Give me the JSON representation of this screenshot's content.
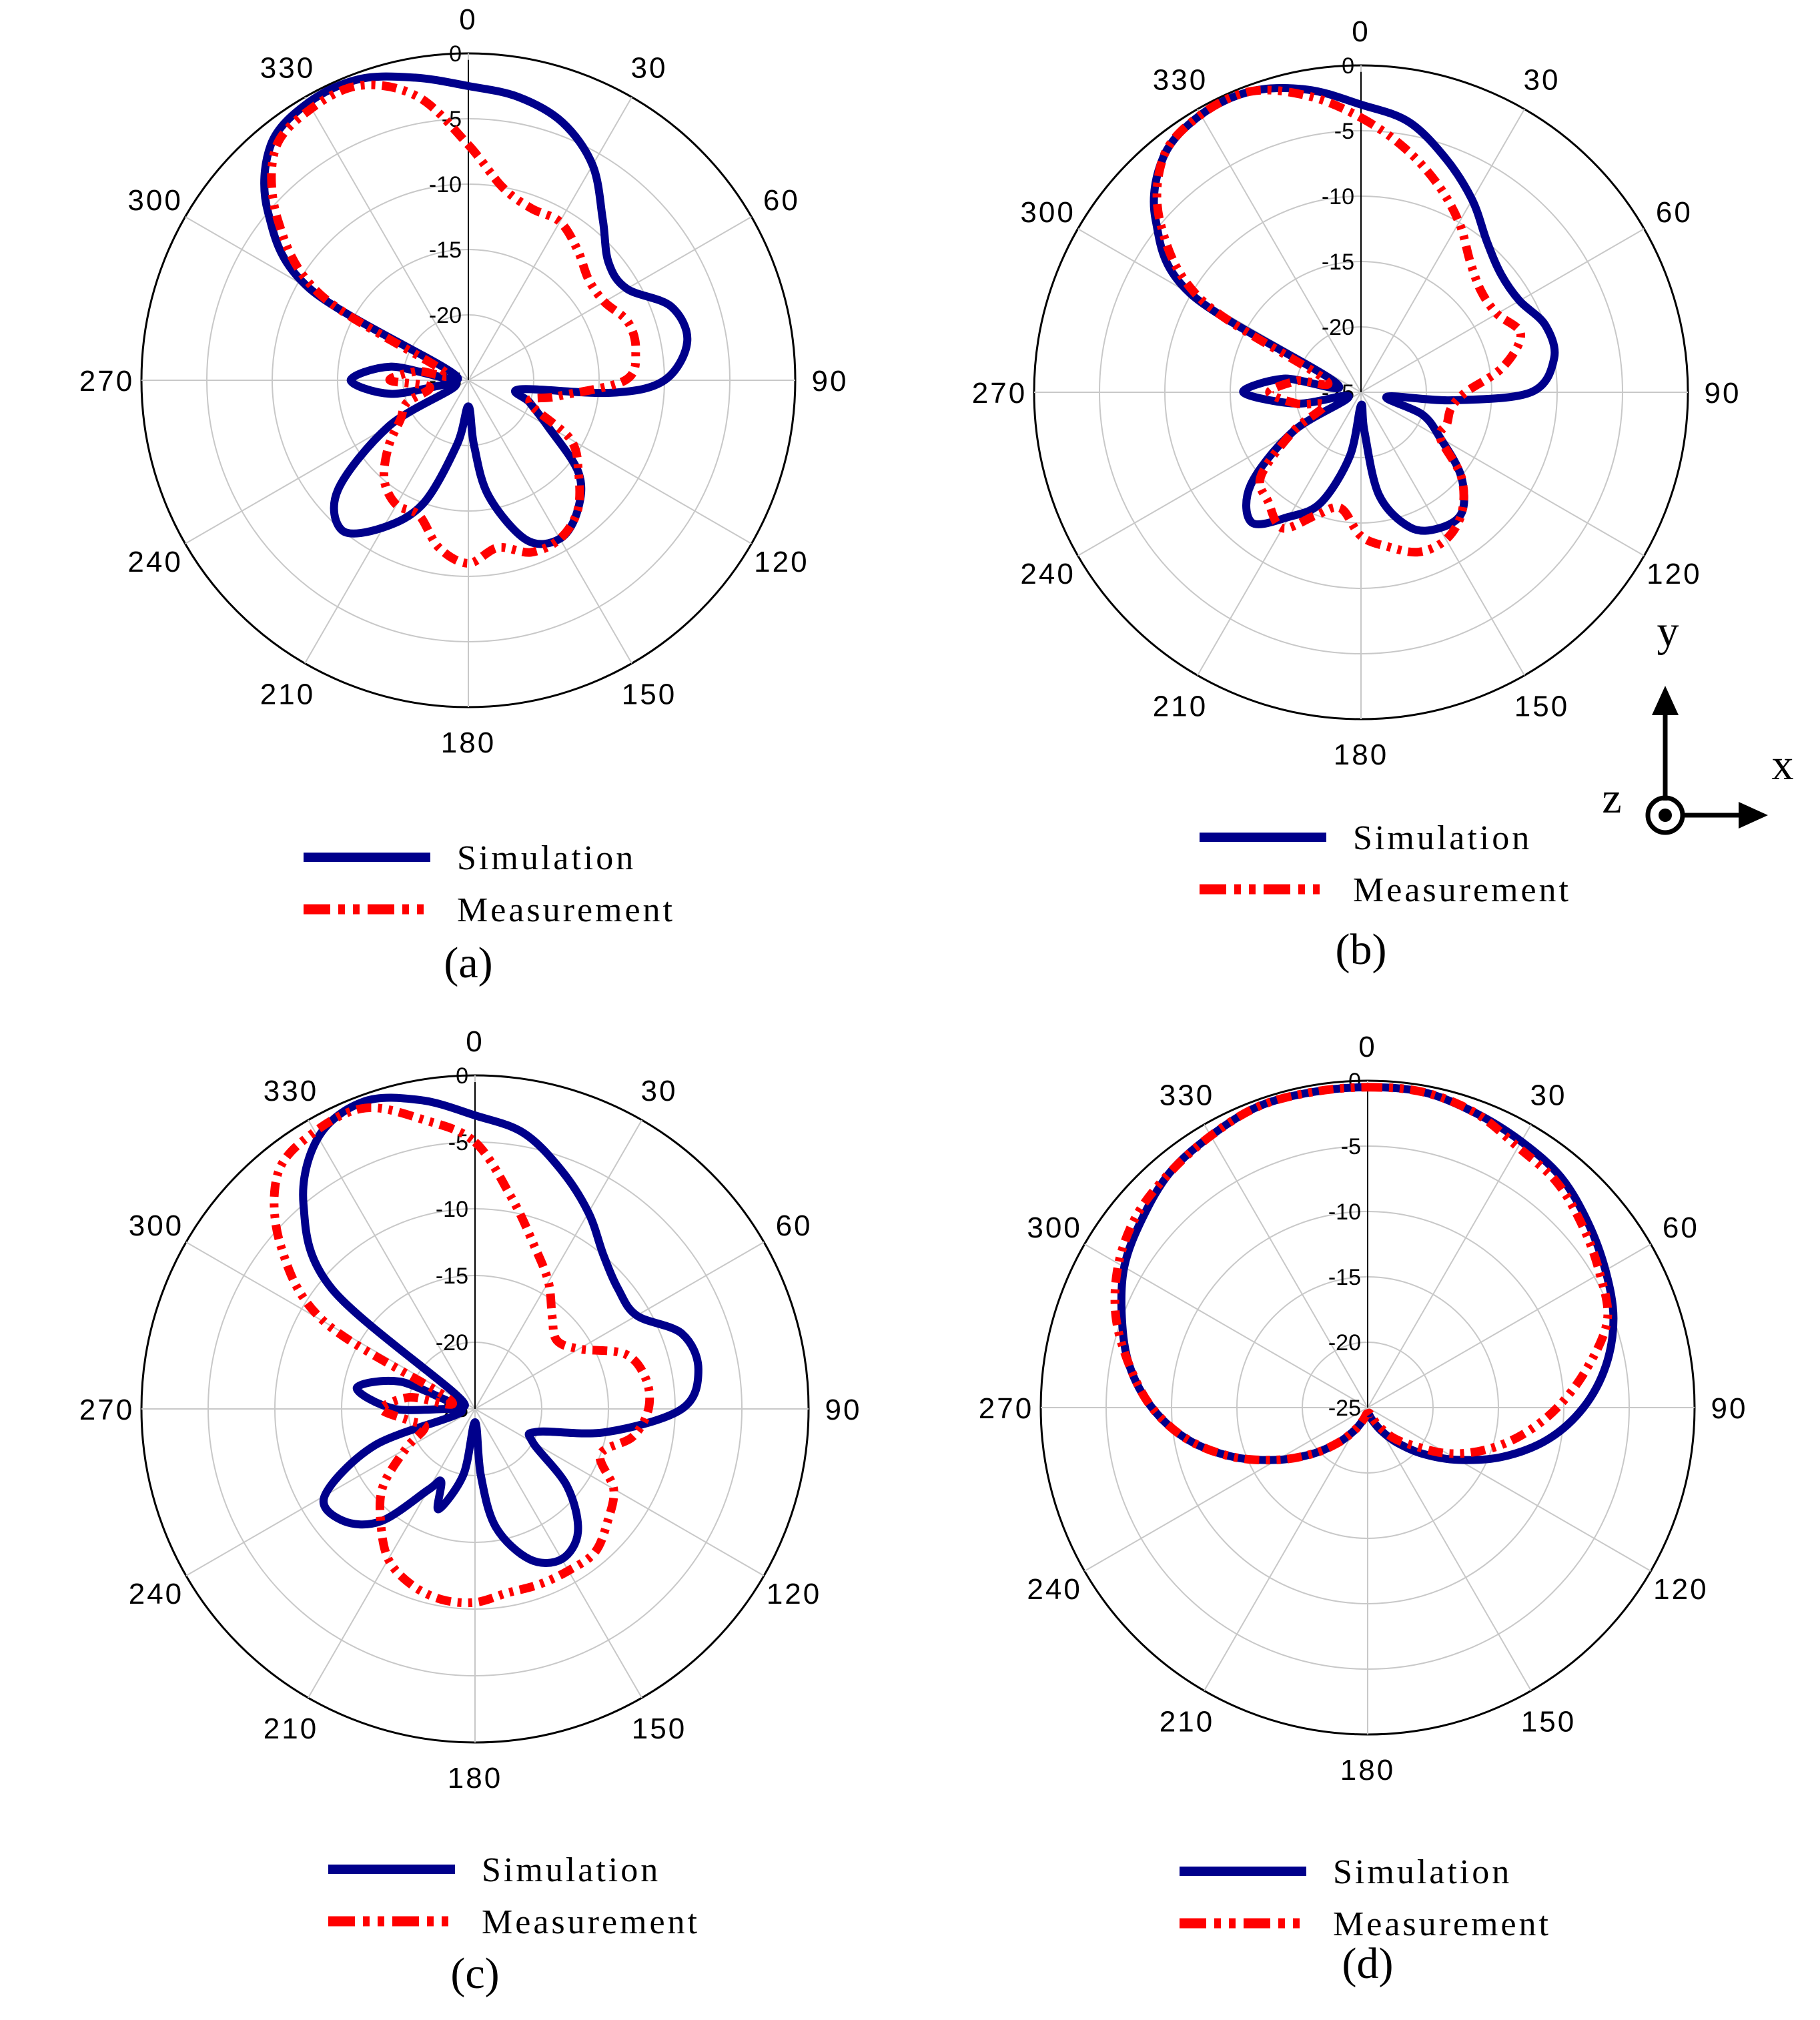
{
  "colors": {
    "simulation": "#00008b",
    "measurement": "#ff0000",
    "grid": "#c8c8c8",
    "frame": "#000000"
  },
  "coordinate_axes": {
    "y_label": "y",
    "x_label": "x",
    "z_label": "z"
  },
  "chart_data": [
    {
      "type": "line",
      "subtype": "polar",
      "panel_label": "(a)",
      "angle_ticks": [
        "0",
        "30",
        "60",
        "90",
        "120",
        "150",
        "180",
        "210",
        "240",
        "270",
        "300",
        "330"
      ],
      "radial_ticks": [
        "0",
        "-5",
        "-10",
        "-15",
        "-20",
        "-25"
      ],
      "rlim": [
        -25,
        0
      ],
      "grid": true,
      "legend": [
        "Simulation",
        "Measurement"
      ],
      "legend_position": "bottom",
      "series": [
        {
          "name": "Simulation",
          "angles": [
            0,
            10,
            20,
            30,
            40,
            50,
            60,
            70,
            80,
            90,
            95,
            100,
            110,
            120,
            130,
            140,
            150,
            160,
            170,
            175,
            180,
            190,
            200,
            210,
            220,
            230,
            240,
            250,
            260,
            270,
            280,
            290,
            300,
            310,
            320,
            330,
            340,
            350
          ],
          "values": [
            -2.5,
            -3,
            -4,
            -6,
            -9,
            -11,
            -11,
            -8.5,
            -8,
            -10,
            -14,
            -21,
            -20,
            -18,
            -14,
            -12,
            -11,
            -12,
            -16,
            -20,
            -23,
            -20,
            -15,
            -12,
            -10,
            -12,
            -18,
            -24,
            -19,
            -16,
            -19,
            -24,
            -11,
            -5,
            -1.5,
            -0.5,
            -0.5,
            -1.5
          ]
        },
        {
          "name": "Measurement",
          "angles": [
            0,
            10,
            20,
            30,
            40,
            50,
            60,
            70,
            80,
            90,
            100,
            110,
            120,
            130,
            140,
            150,
            160,
            170,
            180,
            190,
            200,
            210,
            220,
            230,
            240,
            250,
            260,
            270,
            280,
            290,
            300,
            310,
            320,
            330,
            340,
            350
          ],
          "values": [
            -7,
            -10,
            -11,
            -11,
            -12,
            -13,
            -13,
            -12,
            -12,
            -13,
            -18,
            -20,
            -16,
            -14,
            -12,
            -11,
            -11,
            -12,
            -11,
            -12,
            -14,
            -14,
            -15,
            -17,
            -19,
            -20,
            -22,
            -19,
            -21,
            -23,
            -12,
            -6,
            -2,
            -1,
            -1,
            -3
          ]
        }
      ]
    },
    {
      "type": "line",
      "subtype": "polar",
      "panel_label": "(b)",
      "angle_ticks": [
        "0",
        "30",
        "60",
        "90",
        "120",
        "150",
        "180",
        "210",
        "240",
        "270",
        "300",
        "330"
      ],
      "radial_ticks": [
        "0",
        "-5",
        "-10",
        "-15",
        "-20",
        "-25"
      ],
      "rlim": [
        -25,
        0
      ],
      "grid": true,
      "legend": [
        "Simulation",
        "Measurement"
      ],
      "legend_position": "bottom",
      "series": [
        {
          "name": "Simulation",
          "angles": [
            0,
            10,
            20,
            30,
            40,
            50,
            60,
            70,
            80,
            90,
            95,
            100,
            110,
            120,
            130,
            140,
            150,
            160,
            170,
            175,
            180,
            190,
            200,
            210,
            220,
            230,
            240,
            250,
            260,
            270,
            280,
            290,
            300,
            310,
            320,
            330,
            340,
            350
          ],
          "values": [
            -3,
            -4,
            -6,
            -8,
            -10,
            -11,
            -11,
            -10,
            -10,
            -12,
            -18,
            -23,
            -20,
            -18,
            -15,
            -13,
            -13,
            -14,
            -17,
            -22,
            -24,
            -20,
            -16,
            -14,
            -12,
            -14,
            -19,
            -24,
            -20,
            -16,
            -19,
            -23,
            -10,
            -4.5,
            -1.5,
            -0.5,
            -0.5,
            -1.5
          ]
        },
        {
          "name": "Measurement",
          "angles": [
            0,
            10,
            20,
            30,
            40,
            50,
            60,
            70,
            80,
            90,
            100,
            110,
            120,
            130,
            140,
            150,
            160,
            170,
            180,
            190,
            200,
            210,
            220,
            230,
            240,
            250,
            260,
            270,
            280,
            290,
            300,
            310,
            320,
            330,
            340,
            350
          ],
          "values": [
            -4,
            -6,
            -8,
            -10,
            -12,
            -13,
            -13,
            -12,
            -14,
            -17,
            -18,
            -18,
            -18,
            -15,
            -13,
            -12,
            -12,
            -13,
            -14,
            -16,
            -15,
            -13,
            -14,
            -15,
            -19,
            -22,
            -20,
            -18,
            -20,
            -22,
            -11,
            -5,
            -1.5,
            -0.5,
            -0.5,
            -2
          ]
        }
      ]
    },
    {
      "type": "line",
      "subtype": "polar",
      "panel_label": "(c)",
      "angle_ticks": [
        "0",
        "30",
        "60",
        "90",
        "120",
        "150",
        "180",
        "210",
        "240",
        "270",
        "300",
        "330"
      ],
      "radial_ticks": [
        "0",
        "-5",
        "-10",
        "-15",
        "-20",
        "-25"
      ],
      "rlim": [
        -25,
        0
      ],
      "grid": true,
      "legend": [
        "Simulation",
        "Measurement"
      ],
      "legend_position": "bottom",
      "series": [
        {
          "name": "Simulation",
          "angles": [
            0,
            10,
            20,
            30,
            40,
            50,
            60,
            70,
            80,
            90,
            100,
            110,
            120,
            130,
            140,
            150,
            160,
            170,
            175,
            180,
            190,
            200,
            205,
            210,
            220,
            230,
            240,
            250,
            260,
            270,
            280,
            290,
            300,
            310,
            320,
            330,
            340,
            350
          ],
          "values": [
            -3,
            -4,
            -6,
            -8,
            -10,
            -11,
            -11,
            -8.5,
            -8,
            -9.5,
            -15,
            -20,
            -20,
            -16,
            -13,
            -12,
            -13,
            -16,
            -20,
            -24,
            -20,
            -17,
            -19,
            -18,
            -14,
            -12,
            -12,
            -17,
            -24,
            -19,
            -16,
            -19,
            -24,
            -11,
            -5,
            -1.5,
            -0.5,
            -1.5
          ]
        },
        {
          "name": "Measurement",
          "angles": [
            0,
            10,
            20,
            30,
            40,
            50,
            60,
            70,
            80,
            90,
            100,
            110,
            120,
            130,
            140,
            150,
            160,
            170,
            180,
            190,
            200,
            210,
            220,
            230,
            240,
            250,
            260,
            270,
            280,
            290,
            300,
            310,
            320,
            330,
            340,
            350
          ],
          "values": [
            -5,
            -9,
            -12,
            -14,
            -16,
            -17,
            -16,
            -13,
            -12,
            -12,
            -13,
            -15,
            -13,
            -12,
            -11,
            -11,
            -11,
            -11,
            -10.5,
            -10.5,
            -11,
            -12,
            -14,
            -16,
            -19,
            -21,
            -20,
            -18,
            -20,
            -23,
            -12,
            -6,
            -2,
            -1,
            -1,
            -3
          ]
        }
      ]
    },
    {
      "type": "line",
      "subtype": "polar",
      "panel_label": "(d)",
      "angle_ticks": [
        "0",
        "30",
        "60",
        "90",
        "120",
        "150",
        "180",
        "210",
        "240",
        "270",
        "300",
        "330"
      ],
      "radial_ticks": [
        "0",
        "-5",
        "-10",
        "-15",
        "-20",
        "-25"
      ],
      "rlim": [
        -25,
        0
      ],
      "grid": true,
      "legend": [
        "Simulation",
        "Measurement"
      ],
      "legend_position": "bottom",
      "series": [
        {
          "name": "Simulation",
          "angles": [
            0,
            10,
            20,
            30,
            40,
            50,
            60,
            70,
            80,
            90,
            100,
            110,
            120,
            130,
            140,
            150,
            160,
            170,
            180,
            190,
            200,
            210,
            220,
            230,
            240,
            250,
            260,
            270,
            280,
            290,
            300,
            310,
            320,
            330,
            340,
            350
          ],
          "values": [
            -0.5,
            -0.5,
            -1,
            -1.5,
            -2,
            -3,
            -4,
            -5,
            -6.5,
            -8.5,
            -11,
            -14,
            -17,
            -19.5,
            -21.5,
            -23,
            -24,
            -24.5,
            -24.5,
            -24.5,
            -24,
            -23,
            -21.5,
            -19.5,
            -17,
            -14,
            -11,
            -8.5,
            -6.5,
            -5,
            -3.5,
            -2.5,
            -1.5,
            -1,
            -0.5,
            -0.5
          ]
        },
        {
          "name": "Measurement",
          "angles": [
            0,
            10,
            20,
            30,
            40,
            50,
            60,
            70,
            80,
            90,
            100,
            110,
            120,
            130,
            140,
            150,
            160,
            170,
            180,
            190,
            200,
            210,
            220,
            230,
            240,
            250,
            260,
            270,
            280,
            290,
            300,
            310,
            320,
            330,
            340,
            350
          ],
          "values": [
            -0.5,
            -0.5,
            -1,
            -2,
            -2.5,
            -3.5,
            -4.5,
            -5.5,
            -8,
            -10.5,
            -13,
            -15.5,
            -18,
            -20.5,
            -22,
            -23.5,
            -24.5,
            -24.5,
            -24.5,
            -24.5,
            -24,
            -23,
            -21.5,
            -19.5,
            -17,
            -14,
            -11,
            -8.5,
            -6.5,
            -4.5,
            -3,
            -2,
            -1.5,
            -1,
            -0.5,
            -0.5
          ]
        }
      ]
    }
  ]
}
